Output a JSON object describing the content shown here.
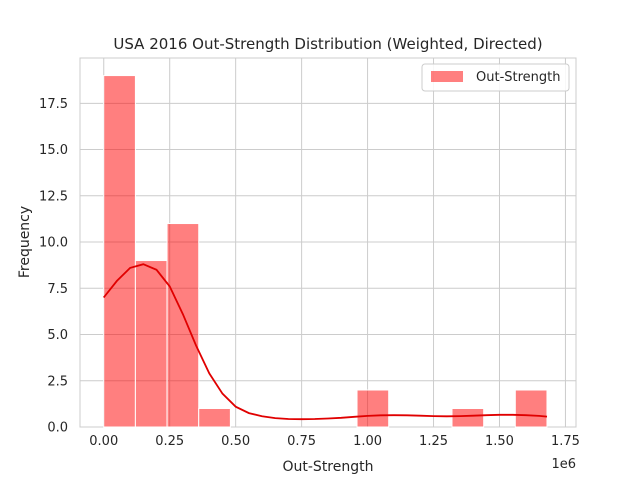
{
  "chart_data": {
    "type": "bar",
    "title": "USA 2016 Out-Strength Distribution (Weighted, Directed)",
    "xlabel": "Out-Strength",
    "ylabel": "Frequency",
    "x_offset_label": "1e6",
    "xlim": [
      -0.09,
      1.79
    ],
    "ylim": [
      0,
      19.95
    ],
    "x_ticks": [
      0.0,
      0.25,
      0.5,
      0.75,
      1.0,
      1.25,
      1.5,
      1.75
    ],
    "x_tick_labels": [
      "0.00",
      "0.25",
      "0.50",
      "0.75",
      "1.00",
      "1.25",
      "1.50",
      "1.75"
    ],
    "y_ticks": [
      0.0,
      2.5,
      5.0,
      7.5,
      10.0,
      12.5,
      15.0,
      17.5
    ],
    "y_tick_labels": [
      "0.0",
      "2.5",
      "5.0",
      "7.5",
      "10.0",
      "12.5",
      "15.0",
      "17.5"
    ],
    "grid": true,
    "legend_position": "top-right",
    "bar_color": "#ff0000",
    "bar_opacity": 0.5,
    "kde_color": "#e00000",
    "series": [
      {
        "name": "Out-Strength",
        "bins": [
          {
            "x0": 0.0,
            "x1": 0.12,
            "count": 19
          },
          {
            "x0": 0.12,
            "x1": 0.24,
            "count": 9
          },
          {
            "x0": 0.24,
            "x1": 0.36,
            "count": 11
          },
          {
            "x0": 0.36,
            "x1": 0.48,
            "count": 1
          },
          {
            "x0": 0.48,
            "x1": 0.6,
            "count": 0
          },
          {
            "x0": 0.6,
            "x1": 0.72,
            "count": 0
          },
          {
            "x0": 0.72,
            "x1": 0.84,
            "count": 0
          },
          {
            "x0": 0.84,
            "x1": 0.96,
            "count": 0
          },
          {
            "x0": 0.96,
            "x1": 1.08,
            "count": 2
          },
          {
            "x0": 1.08,
            "x1": 1.2,
            "count": 0
          },
          {
            "x0": 1.2,
            "x1": 1.32,
            "count": 0
          },
          {
            "x0": 1.32,
            "x1": 1.44,
            "count": 1
          },
          {
            "x0": 1.44,
            "x1": 1.56,
            "count": 0
          },
          {
            "x0": 1.56,
            "x1": 1.68,
            "count": 2
          }
        ],
        "kde": {
          "x": [
            0.0,
            0.05,
            0.1,
            0.15,
            0.2,
            0.25,
            0.3,
            0.35,
            0.4,
            0.45,
            0.5,
            0.55,
            0.6,
            0.65,
            0.7,
            0.75,
            0.8,
            0.85,
            0.9,
            0.95,
            1.0,
            1.05,
            1.1,
            1.15,
            1.2,
            1.25,
            1.3,
            1.35,
            1.4,
            1.45,
            1.5,
            1.55,
            1.6,
            1.65,
            1.68
          ],
          "y": [
            7.0,
            7.9,
            8.6,
            8.8,
            8.5,
            7.6,
            6.1,
            4.4,
            2.9,
            1.8,
            1.1,
            0.75,
            0.58,
            0.48,
            0.43,
            0.42,
            0.43,
            0.46,
            0.5,
            0.55,
            0.6,
            0.63,
            0.64,
            0.63,
            0.61,
            0.59,
            0.58,
            0.59,
            0.61,
            0.64,
            0.66,
            0.66,
            0.64,
            0.6,
            0.56
          ]
        }
      }
    ]
  }
}
